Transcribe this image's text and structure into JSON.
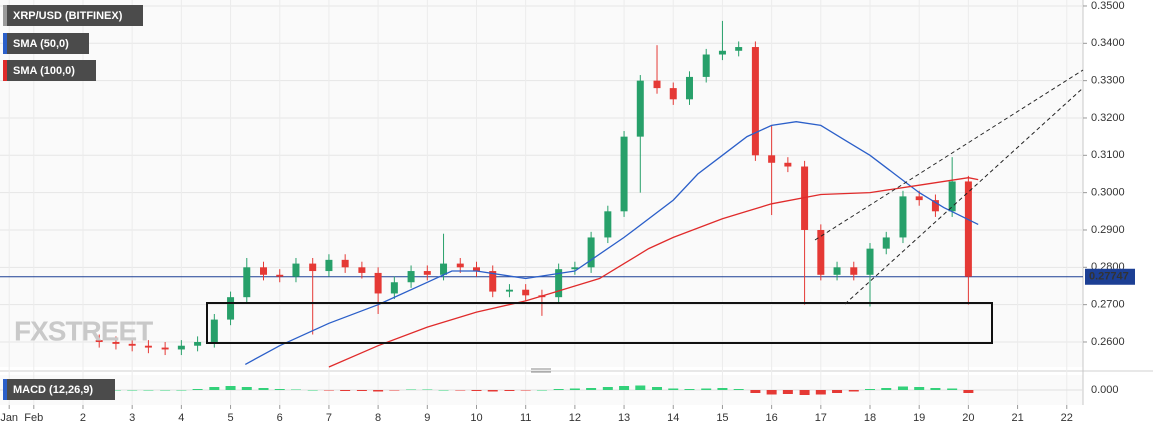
{
  "chart_data": {
    "type": "candlestick",
    "legend": [
      "XRP/USD (BITFINEX)",
      "SMA (50,0)",
      "SMA (100,0)"
    ],
    "watermark": "FXSTREET",
    "x": [
      2.33,
      2.67,
      3,
      3.33,
      3.67,
      4,
      4.33,
      4.67,
      5,
      5.33,
      5.67,
      6,
      6.33,
      6.67,
      7,
      7.33,
      7.67,
      8,
      8.33,
      8.67,
      9,
      9.33,
      9.67,
      10,
      10.33,
      10.67,
      11,
      11.33,
      11.67,
      12,
      12.33,
      12.67,
      13,
      13.33,
      13.67,
      14,
      14.33,
      14.67,
      15,
      15.33,
      15.67,
      16,
      16.33,
      16.67,
      17,
      17.33,
      17.67,
      18,
      18.33,
      18.67,
      19,
      19.33,
      19.67,
      20
    ],
    "open": [
      0.2605,
      0.26,
      0.2595,
      0.259,
      0.2585,
      0.258,
      0.259,
      0.26,
      0.266,
      0.272,
      0.28,
      0.278,
      0.2775,
      0.281,
      0.279,
      0.282,
      0.28,
      0.2785,
      0.273,
      0.276,
      0.279,
      0.278,
      0.281,
      0.28,
      0.279,
      0.2735,
      0.274,
      0.2725,
      0.272,
      0.2795,
      0.28,
      0.288,
      0.295,
      0.315,
      0.33,
      0.328,
      0.325,
      0.331,
      0.337,
      0.338,
      0.339,
      0.31,
      0.308,
      0.307,
      0.29,
      0.278,
      0.28,
      0.278,
      0.285,
      0.288,
      0.299,
      0.298,
      0.295,
      0.303
    ],
    "high": [
      0.262,
      0.2615,
      0.261,
      0.2605,
      0.26,
      0.2605,
      0.2615,
      0.2675,
      0.2735,
      0.2825,
      0.2815,
      0.2795,
      0.2825,
      0.2825,
      0.2835,
      0.2835,
      0.2815,
      0.28,
      0.2775,
      0.2805,
      0.2805,
      0.289,
      0.2825,
      0.2815,
      0.2805,
      0.2755,
      0.2755,
      0.274,
      0.281,
      0.2815,
      0.2895,
      0.2965,
      0.3165,
      0.3315,
      0.3395,
      0.3295,
      0.3325,
      0.3385,
      0.346,
      0.3405,
      0.3405,
      0.318,
      0.3095,
      0.3085,
      0.2915,
      0.2815,
      0.2815,
      0.2865,
      0.2895,
      0.3005,
      0.3005,
      0.2995,
      0.3095,
      0.3045
    ],
    "low": [
      0.2585,
      0.258,
      0.2575,
      0.257,
      0.2565,
      0.2565,
      0.2575,
      0.2585,
      0.2645,
      0.2705,
      0.2765,
      0.276,
      0.276,
      0.262,
      0.2775,
      0.2785,
      0.277,
      0.2675,
      0.2715,
      0.2745,
      0.2765,
      0.2765,
      0.2785,
      0.2775,
      0.272,
      0.272,
      0.271,
      0.267,
      0.2705,
      0.278,
      0.2785,
      0.2865,
      0.2935,
      0.3,
      0.3265,
      0.3235,
      0.3235,
      0.3295,
      0.3355,
      0.3365,
      0.3085,
      0.294,
      0.3055,
      0.27,
      0.2765,
      0.2765,
      0.2765,
      0.2695,
      0.2835,
      0.2865,
      0.2965,
      0.2935,
      0.2935,
      0.27
    ],
    "close": [
      0.26,
      0.2595,
      0.259,
      0.2585,
      0.258,
      0.259,
      0.26,
      0.266,
      0.272,
      0.28,
      0.278,
      0.2775,
      0.281,
      0.279,
      0.282,
      0.28,
      0.2785,
      0.273,
      0.276,
      0.279,
      0.278,
      0.281,
      0.28,
      0.279,
      0.2735,
      0.274,
      0.2725,
      0.272,
      0.2795,
      0.28,
      0.288,
      0.295,
      0.315,
      0.33,
      0.328,
      0.325,
      0.331,
      0.337,
      0.338,
      0.339,
      0.31,
      0.308,
      0.307,
      0.29,
      0.278,
      0.28,
      0.278,
      0.285,
      0.288,
      0.299,
      0.298,
      0.295,
      0.303,
      0.2775
    ],
    "up_color": "#27a06a",
    "down_color": "#e53935",
    "series": [
      {
        "name": "SMA (50,0)",
        "color": "#2b5fc9",
        "x": [
          5.3,
          6,
          7,
          8,
          9,
          9.5,
          10,
          11,
          12,
          13,
          14,
          14.5,
          15,
          15.5,
          16,
          16.5,
          17,
          17.5,
          18,
          18.5,
          19,
          19.5,
          20.2
        ],
        "values": [
          0.254,
          0.259,
          0.265,
          0.27,
          0.276,
          0.279,
          0.279,
          0.277,
          0.279,
          0.288,
          0.298,
          0.305,
          0.31,
          0.315,
          0.318,
          0.319,
          0.318,
          0.314,
          0.31,
          0.305,
          0.3,
          0.296,
          0.2915
        ]
      },
      {
        "name": "SMA (100,0)",
        "color": "#e02b2b",
        "x": [
          7,
          8,
          9,
          10,
          11,
          11.5,
          12,
          12.5,
          13,
          13.5,
          14,
          15,
          15.5,
          16,
          17,
          18,
          19,
          20,
          20.2
        ],
        "values": [
          0.2533,
          0.259,
          0.264,
          0.268,
          0.271,
          0.273,
          0.275,
          0.277,
          0.281,
          0.285,
          0.288,
          0.293,
          0.295,
          0.297,
          0.2995,
          0.3,
          0.302,
          0.304,
          0.3035
        ]
      }
    ],
    "last_price": 0.27747,
    "last_price_color": "#1c3f94",
    "xlim": [
      0.313,
      22.33
    ],
    "ylim": [
      0.2533,
      0.3516
    ],
    "xticks": [
      {
        "value": 0.5,
        "label": "Jan"
      },
      {
        "value": 1,
        "label": "Feb"
      },
      2,
      3,
      4,
      5,
      6,
      7,
      8,
      9,
      10,
      11,
      12,
      13,
      14,
      15,
      16,
      17,
      18,
      19,
      20,
      21,
      22
    ],
    "yticks": [
      {
        "value": 0.26,
        "label": "0.2600"
      },
      {
        "value": 0.27,
        "label": "0.2700"
      },
      {
        "value": 0.28,
        "label": "0.2800"
      },
      {
        "value": 0.29,
        "label": "0.2900"
      },
      {
        "value": 0.3,
        "label": "0.3000"
      },
      {
        "value": 0.31,
        "label": "0.3100"
      },
      {
        "value": 0.32,
        "label": "0.3200"
      },
      {
        "value": 0.33,
        "label": "0.3300"
      },
      {
        "value": 0.34,
        "label": "0.3400"
      },
      {
        "value": 0.35,
        "label": "0.3500"
      }
    ],
    "grid": true,
    "macd": {
      "title": "MACD (12,26,9)",
      "ylim": [
        -0.003,
        0.003
      ],
      "yticks": [
        {
          "value": 0,
          "label": "0.000"
        }
      ],
      "histogram": [
        0,
        0,
        0,
        0,
        0,
        0,
        0.0002,
        0.0006,
        0.0008,
        0.0006,
        0.0004,
        0.0002,
        0.0001,
        0,
        -0.0001,
        -0.0002,
        -0.0002,
        -0.0003,
        -0.0001,
        0.0001,
        0.0001,
        0,
        -0.0001,
        -0.0002,
        -0.0003,
        -0.0002,
        -0.0001,
        0,
        0.0002,
        0.0003,
        0.0004,
        0.0006,
        0.0008,
        0.0009,
        0.0006,
        0.0003,
        0.0002,
        0.0003,
        0.0004,
        0.0002,
        -0.0006,
        -0.0009,
        -0.0008,
        -0.001,
        -0.0009,
        -0.0006,
        -0.0003,
        0.0002,
        0.0004,
        0.0007,
        0.0006,
        0.0004,
        0.0003,
        -0.0006
      ]
    }
  }
}
